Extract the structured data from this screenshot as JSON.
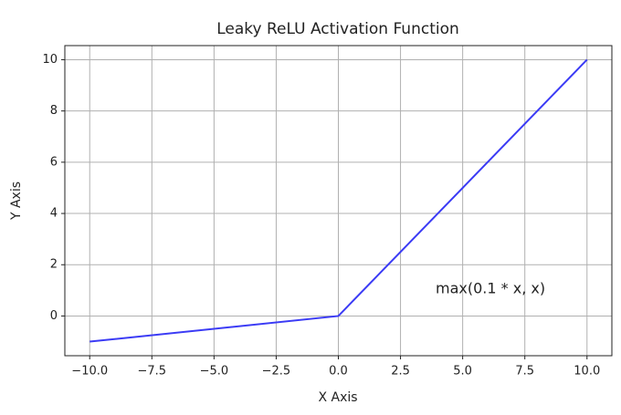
{
  "chart_data": {
    "type": "line",
    "title": "Leaky ReLU Activation Function",
    "x_label": "X Axis",
    "y_label": "Y Axis",
    "annotation": "max(0.1 * x, x)",
    "x": [
      -10,
      0,
      10
    ],
    "values": [
      -1,
      0,
      10
    ],
    "color": "#3b3bf5",
    "xlim": [
      -11,
      11
    ],
    "xticks": [
      {
        "value": -10,
        "label": "−10.0"
      },
      {
        "value": -7.5,
        "label": "−7.5"
      },
      {
        "value": -5,
        "label": "−5.0"
      },
      {
        "value": -2.5,
        "label": "−2.5"
      },
      {
        "value": 0,
        "label": "0.0"
      },
      {
        "value": 2.5,
        "label": "2.5"
      },
      {
        "value": 5,
        "label": "5.0"
      },
      {
        "value": 7.5,
        "label": "7.5"
      },
      {
        "value": 10,
        "label": "10.0"
      }
    ],
    "ylim": [
      -1.55,
      10.55
    ],
    "yticks": [
      0,
      2,
      4,
      6,
      8,
      10
    ],
    "grid": true
  }
}
